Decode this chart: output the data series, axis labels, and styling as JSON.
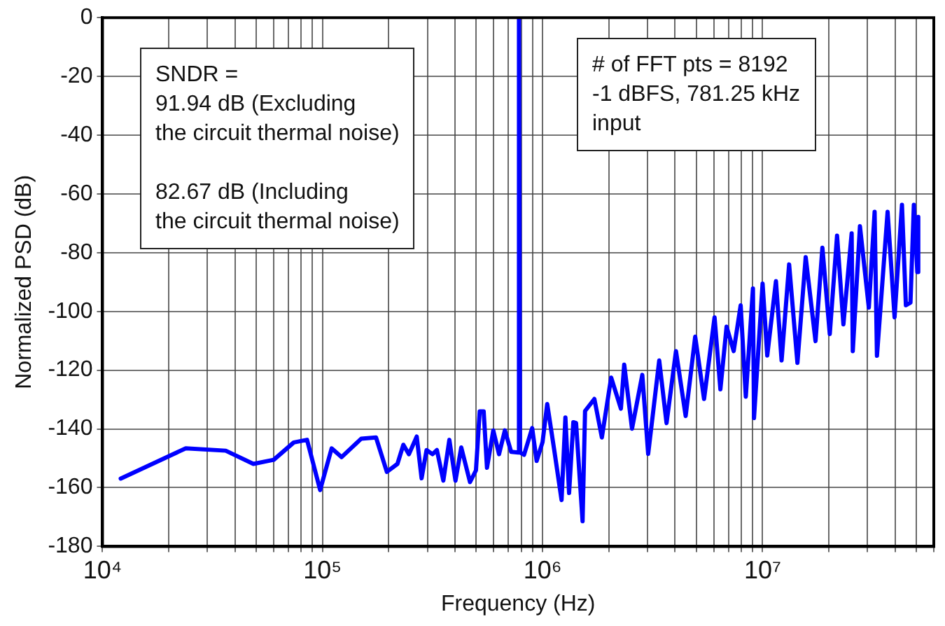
{
  "chart_data": {
    "type": "line",
    "xlabel": "Frequency (Hz)",
    "ylabel": "Normalized PSD (dB)",
    "log": "x",
    "grid": true,
    "legend": false,
    "marker": "none",
    "line_style": "solid",
    "xlim": [
      10000,
      60000000
    ],
    "ylim": [
      -180,
      0
    ],
    "xticks": [
      {
        "value": 10000,
        "label": "10⁴"
      },
      {
        "value": 20000,
        "label": null
      },
      {
        "value": 30000,
        "label": null
      },
      {
        "value": 40000,
        "label": null
      },
      {
        "value": 50000,
        "label": null
      },
      {
        "value": 60000,
        "label": null
      },
      {
        "value": 70000,
        "label": null
      },
      {
        "value": 80000,
        "label": null
      },
      {
        "value": 90000,
        "label": null
      },
      {
        "value": 100000,
        "label": "10⁵"
      },
      {
        "value": 200000,
        "label": null
      },
      {
        "value": 300000,
        "label": null
      },
      {
        "value": 400000,
        "label": null
      },
      {
        "value": 500000,
        "label": null
      },
      {
        "value": 600000,
        "label": null
      },
      {
        "value": 700000,
        "label": null
      },
      {
        "value": 800000,
        "label": null
      },
      {
        "value": 900000,
        "label": null
      },
      {
        "value": 1000000,
        "label": "10⁶"
      },
      {
        "value": 2000000,
        "label": null
      },
      {
        "value": 3000000,
        "label": null
      },
      {
        "value": 4000000,
        "label": null
      },
      {
        "value": 5000000,
        "label": null
      },
      {
        "value": 6000000,
        "label": null
      },
      {
        "value": 7000000,
        "label": null
      },
      {
        "value": 8000000,
        "label": null
      },
      {
        "value": 9000000,
        "label": null
      },
      {
        "value": 10000000,
        "label": "10⁷"
      },
      {
        "value": 20000000,
        "label": null
      },
      {
        "value": 30000000,
        "label": null
      },
      {
        "value": 40000000,
        "label": null
      },
      {
        "value": 50000000,
        "label": null
      },
      {
        "value": 60000000,
        "label": null
      }
    ],
    "yticks": [
      -180,
      -160,
      -140,
      -120,
      -100,
      -80,
      -60,
      -40,
      -20,
      0
    ],
    "annotations": [
      "SNDR =\n91.94 dB (Excluding\nthe circuit thermal noise)\n\n82.67 dB (Including\nthe circuit thermal noise)",
      "# of FFT pts = 8192\n-1 dBFS, 781.25 kHz\ninput"
    ],
    "series": [
      {
        "color": "#0000ff",
        "x": [
          12100,
          23900,
          36300,
          48500,
          60000,
          74000,
          85000,
          97500,
          110000,
          122000,
          150000,
          175000,
          196000,
          219000,
          233000,
          247000,
          268000,
          282000,
          297000,
          316000,
          331000,
          354000,
          377000,
          402000,
          427000,
          468000,
          498000,
          518000,
          540000,
          559000,
          597000,
          634000,
          674000,
          720000,
          775000,
          781250,
          790000,
          824000,
          897000,
          940000,
          1000000,
          1050000,
          1130000,
          1220000,
          1270000,
          1320000,
          1380000,
          1420000,
          1520000,
          1560000,
          1720000,
          1860000,
          2050000,
          2270000,
          2350000,
          2550000,
          2840000,
          3020000,
          3390000,
          3660000,
          4040000,
          4470000,
          4940000,
          5420000,
          6050000,
          6430000,
          6860000,
          7390000,
          7950000,
          8390000,
          9040000,
          9140000,
          10000000,
          10500000,
          11500000,
          12200000,
          13200000,
          14400000,
          15700000,
          17400000,
          18700000,
          20200000,
          21800000,
          23300000,
          25400000,
          25700000,
          27700000,
          30400000,
          32300000,
          33100000,
          37000000,
          39800000,
          43000000,
          44800000,
          47000000,
          48700000,
          50500000,
          51000000
        ],
        "values": [
          -156.9,
          -146.6,
          -147.4,
          -151.9,
          -150.5,
          -144.6,
          -143.7,
          -160.8,
          -146.6,
          -149.6,
          -143.3,
          -142.9,
          -154.6,
          -151.9,
          -145.4,
          -148.6,
          -142.6,
          -156.8,
          -147.2,
          -148.6,
          -147.2,
          -157.6,
          -143.7,
          -157.6,
          -146.3,
          -158.1,
          -154.1,
          -134,
          -134,
          -153.2,
          -140.5,
          -148.6,
          -140.5,
          -147.8,
          -148,
          0,
          -148,
          -148.8,
          -139.7,
          -150.9,
          -144.5,
          -131.5,
          -147.2,
          -164.2,
          -136.1,
          -161.8,
          -137.7,
          -138,
          -171.4,
          -133.9,
          -129.8,
          -142.9,
          -122.5,
          -133.1,
          -118.1,
          -139.9,
          -121.6,
          -148.5,
          -116.7,
          -138,
          -113.5,
          -135.6,
          -108.6,
          -129.8,
          -102,
          -126.5,
          -105.2,
          -113.5,
          -97.9,
          -129,
          -92.2,
          -136.3,
          -90.5,
          -115,
          -89.7,
          -116.7,
          -84,
          -117.5,
          -81.5,
          -110.1,
          -78.3,
          -107.7,
          -74.2,
          -104.4,
          -73.4,
          -113.5,
          -71,
          -98.7,
          -66.1,
          -115.1,
          -66.1,
          -102,
          -63.7,
          -97.9,
          -97,
          -63.7,
          -86.6,
          -67.8
        ]
      }
    ]
  }
}
